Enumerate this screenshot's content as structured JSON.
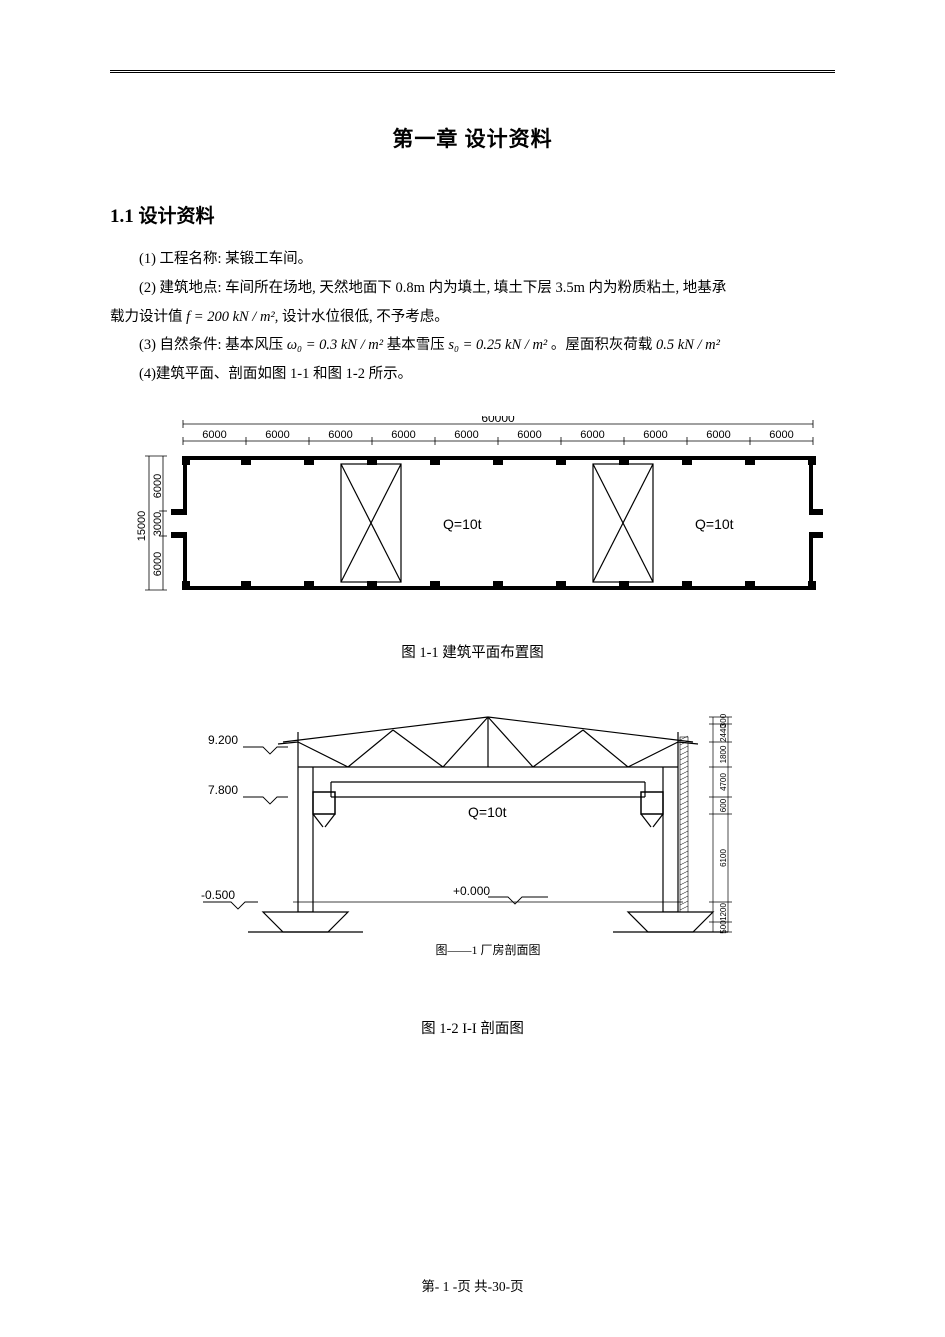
{
  "chapter_title": "第一章  设计资料",
  "section_title": "1.1 设计资料",
  "p1": "(1) 工程名称: 某锻工车间。",
  "p2a": "(2) 建筑地点:  车间所在场地, 天然地面下 0.8m 内为填土, 填土下层 3.5m 内为粉质粘土, 地基承",
  "p2b": "载力设计值",
  "p2b_formula": " f = 200 kN / m²",
  "p2c": ", 设计水位很低, 不予考虑。",
  "p3a": "(3) 自然条件:  基本风压 ",
  "p3_wind": " ω₀ = 0.3 kN / m²",
  "p3b": " 基本雪压 ",
  "p3_snow": " s₀ = 0.25 kN / m²",
  "p3c": " 。屋面积灰荷载",
  "p3_dust": " 0.5 kN / m²",
  "p4": "(4)建筑平面、剖面如图 1-1 和图 1-2 所示。",
  "fig1_caption": "图 1-1  建筑平面布置图",
  "fig2_caption": "图 1-2   I-I 剖面图",
  "fig2_sub_caption": "图——1   厂房剖面图",
  "footer": "第- 1 -页   共-30-页",
  "plan": {
    "total_width_label": "60000",
    "bay_labels": [
      "6000",
      "6000",
      "6000",
      "6000",
      "6000",
      "6000",
      "6000",
      "6000",
      "6000",
      "6000"
    ],
    "height_labels": [
      "6000",
      "3000",
      "6000"
    ],
    "total_height_label": "15000",
    "crane_label": "Q=10t",
    "stroke": "#000000",
    "wall_thickness": 6
  },
  "section": {
    "elev_top": "9.200",
    "elev_rail": "7.800",
    "elev_base": "-0.500",
    "elev_ground": "+0.000",
    "crane_label": "Q=10t",
    "right_dims": [
      "500",
      "1200",
      "6100",
      "600",
      "4700",
      "1800",
      "2440",
      "300"
    ],
    "stroke": "#000000"
  }
}
